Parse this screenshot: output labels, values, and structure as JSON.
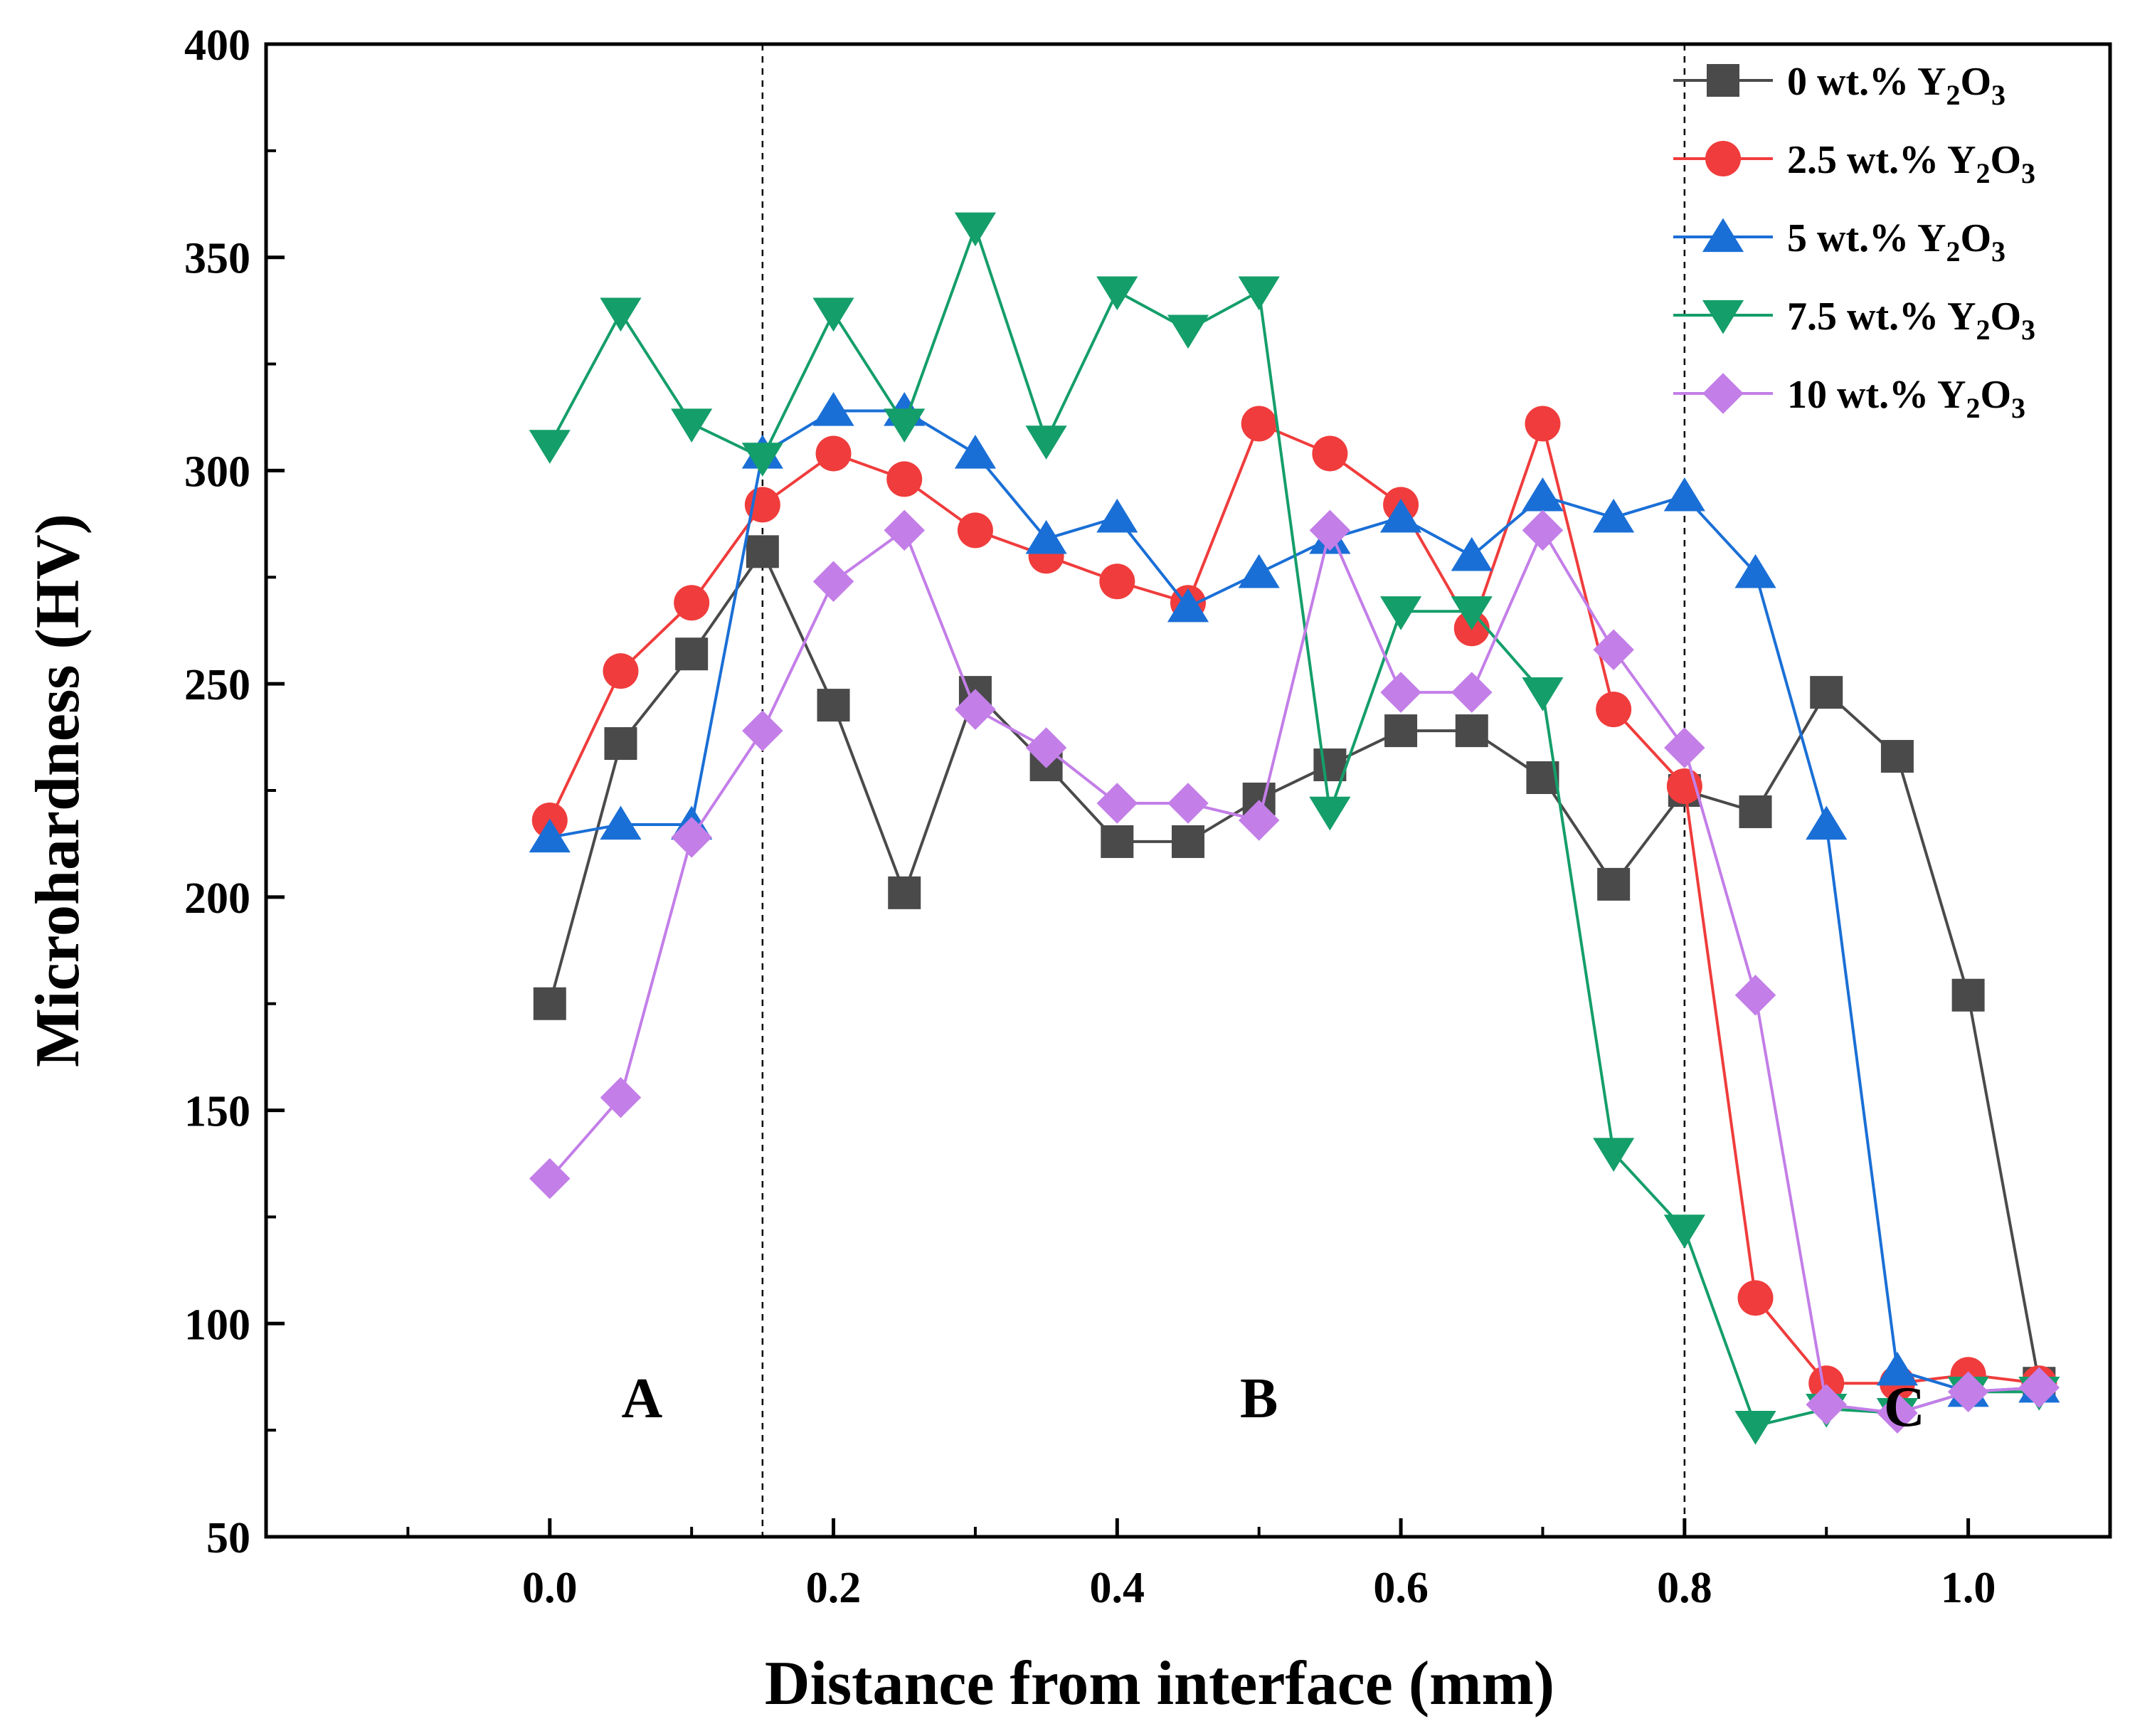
{
  "chart_data": {
    "type": "line",
    "xlabel": "Distance from interface (mm)",
    "ylabel": "Microhardness (HV)",
    "xlim": [
      -0.2,
      1.1
    ],
    "ylim": [
      50,
      400
    ],
    "xticks": [
      0.0,
      0.2,
      0.4,
      0.6,
      0.8,
      1.0
    ],
    "xtick_labels": [
      "0.0",
      "0.2",
      "0.4",
      "0.6",
      "0.8",
      "1.0"
    ],
    "yticks": [
      50,
      100,
      150,
      200,
      250,
      300,
      350,
      400
    ],
    "ytick_labels": [
      "50",
      "100",
      "150",
      "200",
      "250",
      "300",
      "350",
      "400"
    ],
    "x": [
      0.0,
      0.05,
      0.1,
      0.15,
      0.2,
      0.25,
      0.3,
      0.35,
      0.4,
      0.45,
      0.5,
      0.55,
      0.6,
      0.65,
      0.7,
      0.75,
      0.8,
      0.85,
      0.9,
      0.95,
      1.0,
      1.05
    ],
    "series": [
      {
        "name": "0 wt.% Y2O3",
        "legend_main": "0 wt.% Y",
        "color": "#4a4a4a",
        "marker": "square",
        "values": [
          175,
          236,
          257,
          281,
          245,
          201,
          248,
          231,
          213,
          213,
          223,
          231,
          239,
          239,
          228,
          203,
          225,
          220,
          248,
          233,
          177,
          86
        ]
      },
      {
        "name": "2.5 wt.% Y2O3",
        "legend_main": "2.5 wt.% Y",
        "color": "#f03c3c",
        "marker": "circle",
        "values": [
          218,
          253,
          269,
          292,
          304,
          298,
          286,
          280,
          274,
          269,
          311,
          304,
          292,
          263,
          311,
          244,
          226,
          106,
          86,
          86,
          88,
          86
        ]
      },
      {
        "name": "5 wt.% Y2O3",
        "legend_main": "5 wt.% Y",
        "color": "#1a6fd6",
        "marker": "triangle-up",
        "values": [
          214,
          217,
          217,
          304,
          314,
          314,
          304,
          284,
          289,
          268,
          276,
          284,
          289,
          280,
          294,
          289,
          294,
          276,
          217,
          89,
          84,
          85
        ]
      },
      {
        "name": "7.5 wt.% Y2O3",
        "legend_main": "7.5 wt.% Y",
        "color": "#149e6a",
        "marker": "triangle-down",
        "values": [
          306,
          337,
          311,
          303,
          337,
          311,
          357,
          307,
          342,
          333,
          342,
          220,
          267,
          267,
          248,
          140,
          122,
          76,
          80,
          79,
          84,
          84
        ]
      },
      {
        "name": "10 wt.% Y2O3",
        "legend_main": "10 wt.% Y",
        "color": "#c37ee8",
        "marker": "diamond",
        "values": [
          134,
          153,
          214,
          239,
          274,
          286,
          244,
          235,
          222,
          222,
          218,
          286,
          248,
          248,
          286,
          258,
          235,
          177,
          81,
          79,
          84,
          85
        ]
      }
    ],
    "vlines": [
      0.15,
      0.8
    ],
    "regions": [
      {
        "label": "A",
        "x": 0.065,
        "y": 78
      },
      {
        "label": "B",
        "x": 0.5,
        "y": 78
      },
      {
        "label": "C",
        "x": 0.955,
        "y": 76
      }
    ],
    "legend": {
      "position": "top-right"
    }
  }
}
